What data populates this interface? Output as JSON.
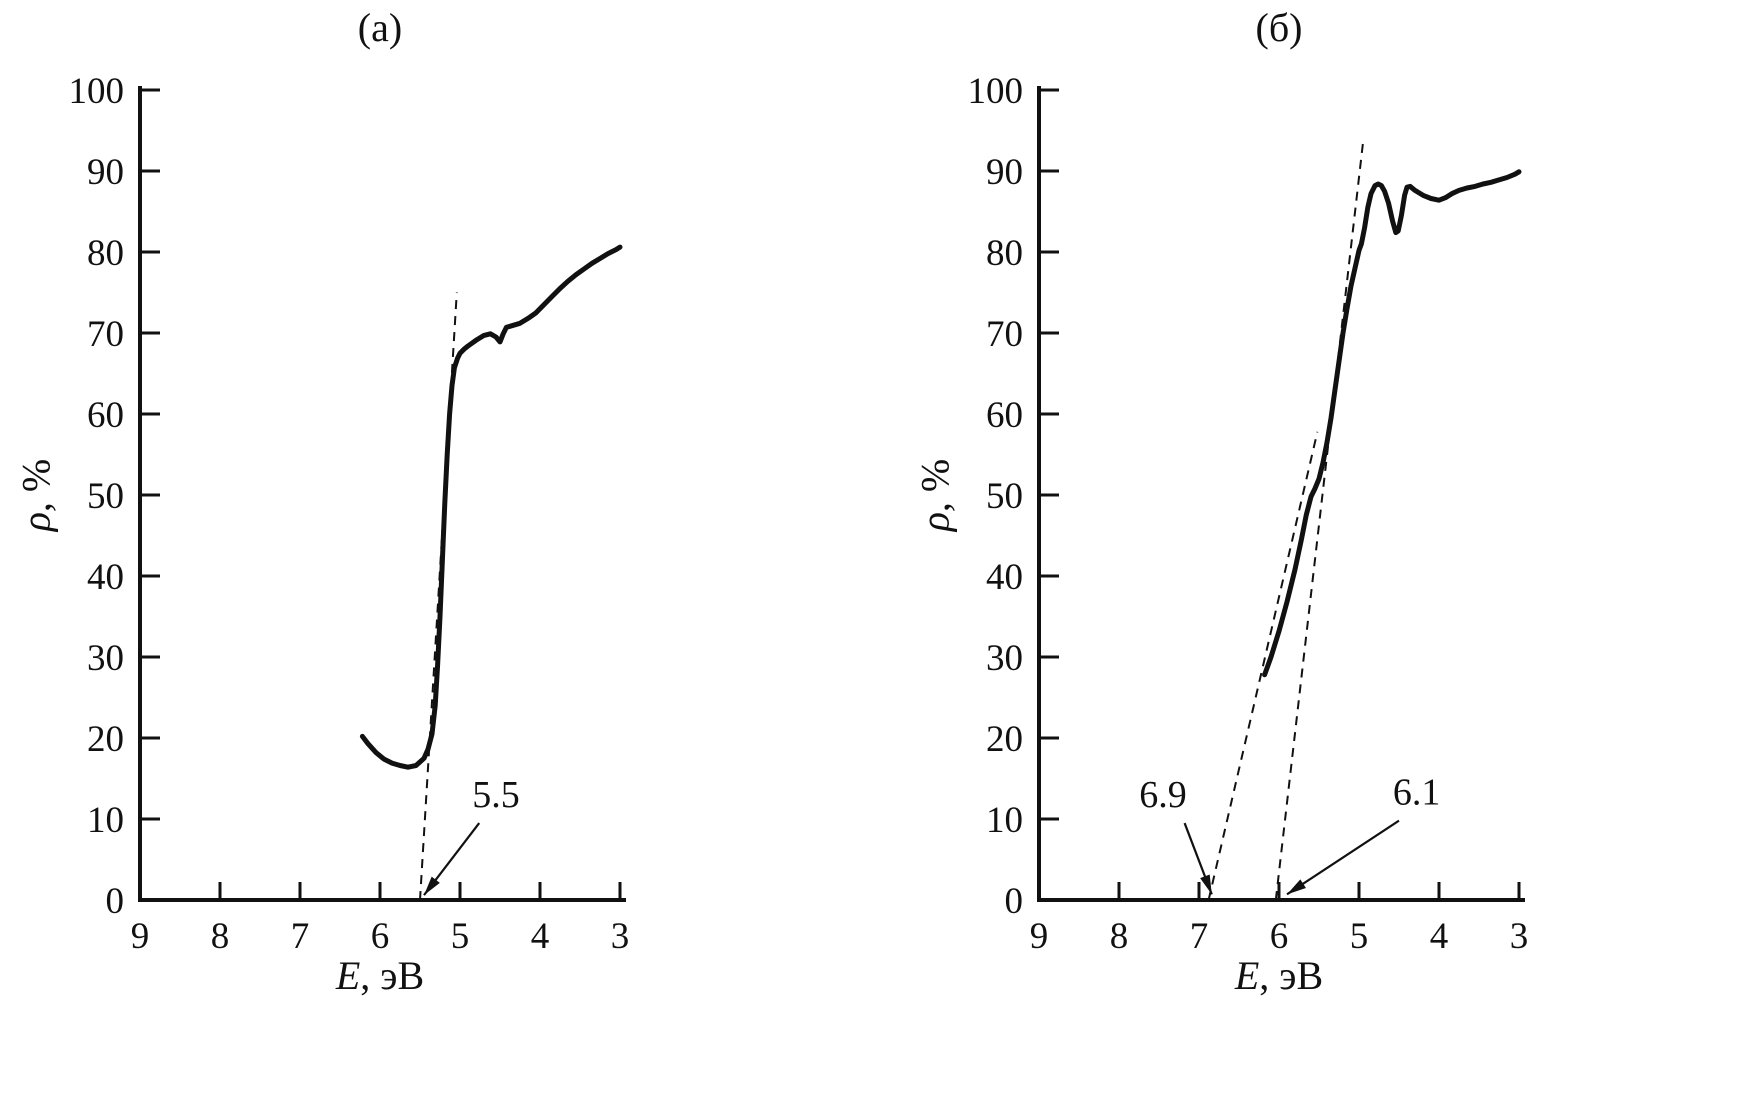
{
  "figure": {
    "background": "#ffffff",
    "ink": "#111111"
  },
  "chart_data": [
    {
      "type": "line",
      "title": "(а)",
      "xlabel": {
        "text": "E, эВ",
        "var": "E",
        "rest": ", эВ"
      },
      "ylabel": {
        "text": "ρ, %",
        "var": "ρ",
        "rest": ", %"
      },
      "x_axis": {
        "min": 3,
        "max": 9,
        "reversed": true,
        "ticks": [
          9,
          8,
          7,
          6,
          5,
          4,
          3
        ]
      },
      "y_axis": {
        "min": 0,
        "max": 100,
        "ticks": [
          0,
          10,
          20,
          30,
          40,
          50,
          60,
          70,
          80,
          90,
          100
        ]
      },
      "series": [
        {
          "name": "reflectance-curve",
          "line": "solid",
          "points": [
            [
              6.22,
              20.2
            ],
            [
              6.15,
              19.3
            ],
            [
              6.05,
              18.2
            ],
            [
              5.95,
              17.4
            ],
            [
              5.85,
              16.9
            ],
            [
              5.75,
              16.6
            ],
            [
              5.65,
              16.4
            ],
            [
              5.55,
              16.6
            ],
            [
              5.45,
              17.5
            ],
            [
              5.4,
              18.6
            ],
            [
              5.35,
              20.5
            ],
            [
              5.31,
              24
            ],
            [
              5.28,
              29
            ],
            [
              5.25,
              35
            ],
            [
              5.22,
              42
            ],
            [
              5.19,
              49
            ],
            [
              5.16,
              55
            ],
            [
              5.13,
              60
            ],
            [
              5.1,
              63.5
            ],
            [
              5.07,
              65.7
            ],
            [
              5.03,
              66.9
            ],
            [
              5.0,
              67.5
            ],
            [
              4.95,
              68
            ],
            [
              4.9,
              68.4
            ],
            [
              4.8,
              69.1
            ],
            [
              4.7,
              69.7
            ],
            [
              4.62,
              69.9
            ],
            [
              4.55,
              69.5
            ],
            [
              4.5,
              68.9
            ],
            [
              4.46,
              69.9
            ],
            [
              4.42,
              70.7
            ],
            [
              4.35,
              70.9
            ],
            [
              4.25,
              71.2
            ],
            [
              4.15,
              71.8
            ],
            [
              4.05,
              72.5
            ],
            [
              3.95,
              73.5
            ],
            [
              3.85,
              74.5
            ],
            [
              3.75,
              75.5
            ],
            [
              3.65,
              76.4
            ],
            [
              3.55,
              77.2
            ],
            [
              3.45,
              77.9
            ],
            [
              3.35,
              78.6
            ],
            [
              3.25,
              79.2
            ],
            [
              3.15,
              79.8
            ],
            [
              3.05,
              80.3
            ],
            [
              3.0,
              80.6
            ]
          ]
        }
      ],
      "guides": [
        {
          "name": "threshold-extrapolation",
          "line": "dashed",
          "from": [
            5.5,
            0
          ],
          "to": [
            5.04,
            75
          ]
        }
      ],
      "annotations": [
        {
          "text": "5.5",
          "text_at": [
            4.55,
            11.5
          ],
          "arrow_from": [
            4.76,
            9.5
          ],
          "arrow_to": [
            5.45,
            0.6
          ]
        }
      ]
    },
    {
      "type": "line",
      "title": "(б)",
      "xlabel": {
        "text": "E, эВ",
        "var": "E",
        "rest": ", эВ"
      },
      "ylabel": {
        "text": "ρ, %",
        "var": "ρ",
        "rest": ", %"
      },
      "x_axis": {
        "min": 3,
        "max": 9,
        "reversed": true,
        "ticks": [
          9,
          8,
          7,
          6,
          5,
          4,
          3
        ]
      },
      "y_axis": {
        "min": 0,
        "max": 100,
        "ticks": [
          0,
          10,
          20,
          30,
          40,
          50,
          60,
          70,
          80,
          90,
          100
        ]
      },
      "series": [
        {
          "name": "reflectance-curve",
          "line": "solid",
          "points": [
            [
              6.18,
              27.8
            ],
            [
              6.1,
              30
            ],
            [
              6.0,
              33.2
            ],
            [
              5.9,
              36.8
            ],
            [
              5.8,
              40.8
            ],
            [
              5.72,
              44.5
            ],
            [
              5.66,
              47.5
            ],
            [
              5.6,
              49.8
            ],
            [
              5.55,
              50.8
            ],
            [
              5.5,
              52
            ],
            [
              5.45,
              54
            ],
            [
              5.4,
              56.5
            ],
            [
              5.35,
              59.5
            ],
            [
              5.3,
              63
            ],
            [
              5.25,
              66.5
            ],
            [
              5.2,
              70
            ],
            [
              5.15,
              73
            ],
            [
              5.1,
              75.8
            ],
            [
              5.05,
              78
            ],
            [
              5.0,
              80.2
            ],
            [
              4.97,
              81
            ],
            [
              4.93,
              83
            ],
            [
              4.89,
              85.5
            ],
            [
              4.85,
              87.2
            ],
            [
              4.8,
              88.2
            ],
            [
              4.76,
              88.4
            ],
            [
              4.72,
              88.2
            ],
            [
              4.68,
              87.5
            ],
            [
              4.63,
              86
            ],
            [
              4.58,
              83.8
            ],
            [
              4.54,
              82.4
            ],
            [
              4.51,
              82.6
            ],
            [
              4.47,
              84.5
            ],
            [
              4.43,
              87
            ],
            [
              4.4,
              88
            ],
            [
              4.36,
              88.1
            ],
            [
              4.3,
              87.6
            ],
            [
              4.2,
              87
            ],
            [
              4.1,
              86.6
            ],
            [
              4.0,
              86.4
            ],
            [
              3.92,
              86.7
            ],
            [
              3.84,
              87.2
            ],
            [
              3.75,
              87.6
            ],
            [
              3.65,
              87.9
            ],
            [
              3.55,
              88.1
            ],
            [
              3.45,
              88.4
            ],
            [
              3.35,
              88.6
            ],
            [
              3.25,
              88.9
            ],
            [
              3.15,
              89.2
            ],
            [
              3.05,
              89.6
            ],
            [
              3.0,
              89.9
            ]
          ]
        }
      ],
      "guides": [
        {
          "name": "lower-threshold-extrapolation",
          "line": "dashed",
          "from": [
            6.88,
            0
          ],
          "to": [
            5.52,
            57.8
          ]
        },
        {
          "name": "upper-threshold-extrapolation",
          "line": "dashed",
          "from": [
            6.04,
            0
          ],
          "to": [
            4.95,
            93.5
          ]
        }
      ],
      "annotations": [
        {
          "text": "6.9",
          "text_at": [
            7.45,
            11.5
          ],
          "arrow_from": [
            7.18,
            9.5
          ],
          "arrow_to": [
            6.84,
            0.7
          ]
        },
        {
          "text": "6.1",
          "text_at": [
            4.28,
            11.8
          ],
          "arrow_from": [
            4.5,
            9.8
          ],
          "arrow_to": [
            5.9,
            0.7
          ]
        }
      ]
    }
  ]
}
